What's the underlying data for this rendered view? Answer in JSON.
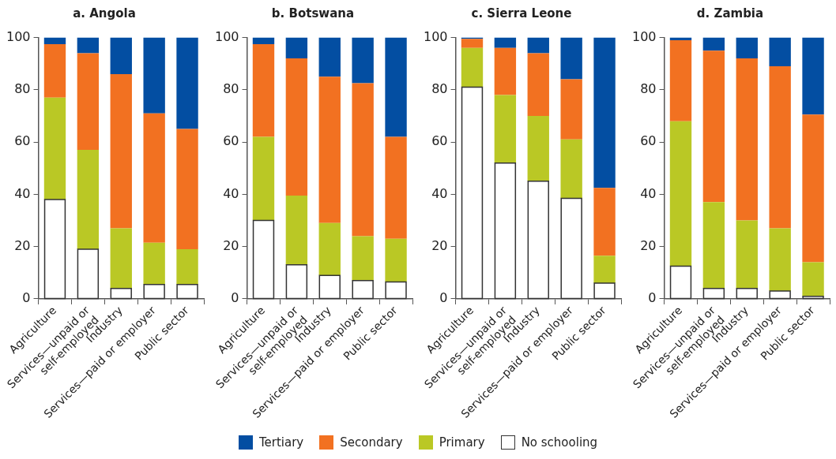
{
  "chart_data": [
    {
      "type": "bar",
      "title": "a. Angola",
      "stacked": true,
      "legend": "bottom",
      "grid": false,
      "categories": [
        "Agriculture",
        "Services—unpaid or\nself-employed",
        "Industry",
        "Services—paid or employer",
        "Public sector"
      ],
      "ylim": [
        0,
        100
      ],
      "yticks": [
        0,
        20,
        40,
        60,
        80,
        100
      ],
      "series": [
        {
          "name": "No schooling",
          "color": "#ffffff",
          "values": [
            38,
            19,
            4,
            5.5,
            5.5
          ]
        },
        {
          "name": "Primary",
          "color": "#bac825",
          "values": [
            39,
            38,
            23,
            16,
            13.5
          ]
        },
        {
          "name": "Secondary",
          "color": "#f27121",
          "values": [
            20.5,
            37,
            59,
            49.5,
            46
          ]
        },
        {
          "name": "Tertiary",
          "color": "#034ea2",
          "values": [
            2.5,
            6,
            14,
            29,
            35
          ]
        }
      ]
    },
    {
      "type": "bar",
      "title": "b. Botswana",
      "stacked": true,
      "grid": false,
      "categories": [
        "Agriculture",
        "Services—unpaid or\nself-employed",
        "Industry",
        "Services—paid or employer",
        "Public sector"
      ],
      "ylim": [
        0,
        100
      ],
      "yticks": [
        0,
        20,
        40,
        60,
        80,
        100
      ],
      "series": [
        {
          "color": "#ffffff",
          "values": [
            30,
            13,
            9,
            7,
            6.5
          ]
        },
        {
          "color": "#bac825",
          "values": [
            32,
            26.5,
            20,
            17,
            16.5
          ]
        },
        {
          "color": "#f27121",
          "values": [
            35.5,
            52.5,
            56,
            58.5,
            39
          ]
        },
        {
          "color": "#034ea2",
          "values": [
            2.5,
            8,
            15,
            17.5,
            38
          ]
        }
      ]
    },
    {
      "type": "bar",
      "title": "c. Sierra Leone",
      "stacked": true,
      "grid": false,
      "categories": [
        "Agriculture",
        "Services—unpaid or\nself-employed",
        "Industry",
        "Services—paid or employer",
        "Public sector"
      ],
      "ylim": [
        0,
        100
      ],
      "yticks": [
        0,
        20,
        40,
        60,
        80,
        100
      ],
      "series": [
        {
          "color": "#ffffff",
          "values": [
            81,
            52,
            45,
            38.5,
            6
          ]
        },
        {
          "color": "#bac825",
          "values": [
            15,
            26,
            25,
            22.5,
            10.5
          ]
        },
        {
          "color": "#f27121",
          "values": [
            3.5,
            18,
            24,
            23,
            26
          ]
        },
        {
          "color": "#034ea2",
          "values": [
            0.5,
            4,
            6,
            16,
            57.5
          ]
        }
      ]
    },
    {
      "type": "bar",
      "title": "d. Zambia",
      "stacked": true,
      "grid": false,
      "categories": [
        "Agriculture",
        "Services—unpaid or\nself-employed",
        "Industry",
        "Services—paid or employer",
        "Public sector"
      ],
      "ylim": [
        0,
        100
      ],
      "yticks": [
        0,
        20,
        40,
        60,
        80,
        100
      ],
      "series": [
        {
          "color": "#ffffff",
          "values": [
            12.5,
            4,
            4,
            3,
            1
          ]
        },
        {
          "color": "#bac825",
          "values": [
            55.5,
            33,
            26,
            24,
            13
          ]
        },
        {
          "color": "#f27121",
          "values": [
            31,
            58,
            62,
            62,
            56.5
          ]
        },
        {
          "color": "#034ea2",
          "values": [
            1,
            5,
            8,
            11,
            29.5
          ]
        }
      ]
    }
  ]
}
